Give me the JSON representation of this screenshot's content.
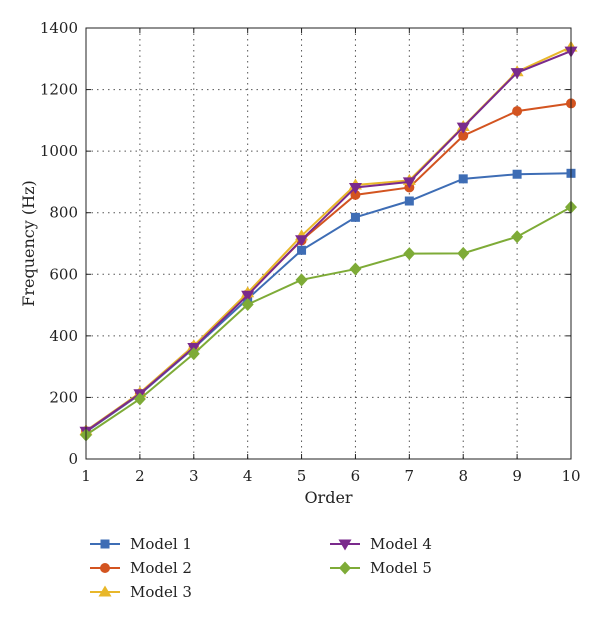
{
  "chart_data": {
    "type": "line",
    "xlabel": "Order",
    "ylabel": "Frequency (Hz)",
    "x": [
      1,
      2,
      3,
      4,
      5,
      6,
      7,
      8,
      9,
      10
    ],
    "xlim": [
      1,
      10
    ],
    "ylim": [
      0,
      1400
    ],
    "yticks": [
      0,
      200,
      400,
      600,
      800,
      1000,
      1200,
      1400
    ],
    "grid": true,
    "legend_position": "bottom",
    "series": [
      {
        "name": "Model 1",
        "color": "#3E6DB5",
        "marker": "square",
        "values": [
          88,
          210,
          360,
          520,
          678,
          785,
          838,
          910,
          925,
          928
        ]
      },
      {
        "name": "Model 2",
        "color": "#D35420",
        "marker": "circle",
        "values": [
          90,
          212,
          365,
          535,
          710,
          858,
          882,
          1050,
          1130,
          1155
        ]
      },
      {
        "name": "Model 3",
        "color": "#E8B72A",
        "marker": "triangle-up",
        "values": [
          92,
          215,
          368,
          540,
          725,
          890,
          905,
          1080,
          1258,
          1338
        ]
      },
      {
        "name": "Model 4",
        "color": "#7A2A8C",
        "marker": "triangle-down",
        "values": [
          90,
          212,
          362,
          532,
          712,
          882,
          900,
          1078,
          1255,
          1325
        ]
      },
      {
        "name": "Model 5",
        "color": "#7EAB37",
        "marker": "diamond",
        "values": [
          78,
          195,
          342,
          502,
          582,
          617,
          667,
          668,
          722,
          818
        ]
      }
    ]
  }
}
